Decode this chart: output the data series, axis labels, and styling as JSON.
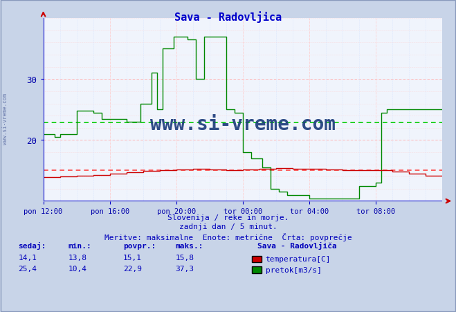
{
  "title": "Sava - Radovljica",
  "title_color": "#0000cc",
  "bg_color": "#c8d4e8",
  "plot_bg_color": "#f0f4fc",
  "grid_pink": "#ffaaaa",
  "grid_pink_minor": "#ffcccc",
  "grid_blue_minor": "#ccddff",
  "xlabel_color": "#0000aa",
  "ylabel_color": "#0000aa",
  "x_tick_labels": [
    "pon 12:00",
    "pon 16:00",
    "pon 20:00",
    "tor 00:00",
    "tor 04:00",
    "tor 08:00"
  ],
  "x_tick_positions": [
    0,
    48,
    96,
    144,
    192,
    240
  ],
  "total_points": 289,
  "ylim_min": 10,
  "ylim_max": 40,
  "yticks": [
    20,
    30
  ],
  "temp_avg": 15.1,
  "flow_avg": 22.9,
  "temp_color": "#cc0000",
  "flow_color": "#008800",
  "avg_color_temp": "#ff4444",
  "avg_color_flow": "#00cc00",
  "footer_line1": "Slovenija / reke in morje.",
  "footer_line2": "zadnji dan / 5 minut.",
  "footer_line3": "Meritve: maksimalne  Enote: metrične  Črta: povprečje",
  "footer_color": "#0000bb",
  "legend_title": "Sava - Radovljiča",
  "legend_temp_label": "temperatura[C]",
  "legend_flow_label": "pretok[m3/s]",
  "table_headers": [
    "sedaj:",
    "min.:",
    "povpr.:",
    "maks.:"
  ],
  "table_temp": [
    "14,1",
    "13,8",
    "15,1",
    "15,8"
  ],
  "table_flow": [
    "25,4",
    "10,4",
    "22,9",
    "37,3"
  ],
  "watermark": "www.si-vreme.com",
  "watermark_color": "#1a3a7a",
  "side_text": "www.si-vreme.com",
  "side_color": "#6677aa",
  "axis_color": "#0000cc",
  "arrow_color": "#cc0000"
}
